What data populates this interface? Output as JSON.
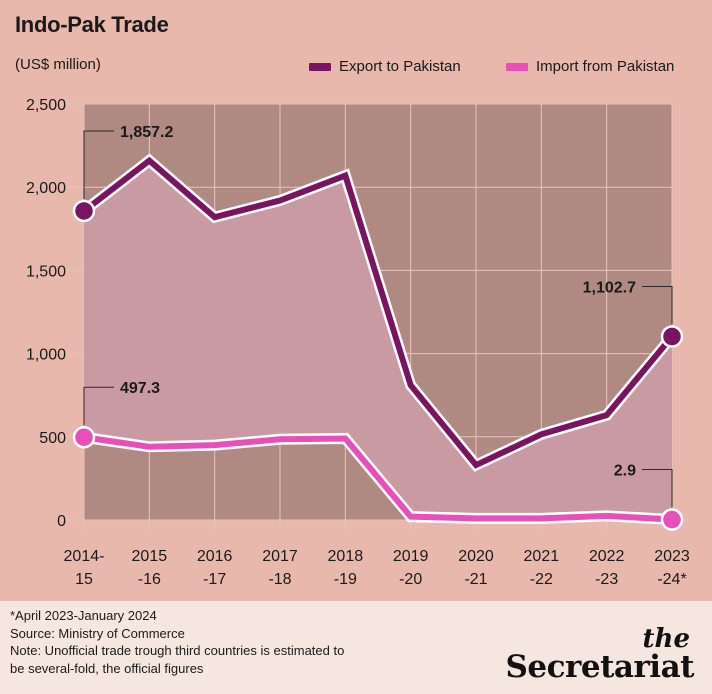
{
  "header": {
    "title": "Indo-Pak Trade",
    "unit": "(US$ million)"
  },
  "colors": {
    "background": "#e8b8ad",
    "plot_background": "#b08a82",
    "area_fill": "#c99aa1",
    "export": "#7a1460",
    "import": "#e84fb8",
    "footer": "#f6e6e0"
  },
  "chart_data": {
    "type": "line",
    "title": "Indo-Pak Trade",
    "ylabel": "(US$ million)",
    "ylim": [
      0,
      2500
    ],
    "yticks": [
      "0",
      "500",
      "1,000",
      "1,500",
      "2,000",
      "2,500"
    ],
    "ytick_values": [
      0,
      500,
      1000,
      1500,
      2000,
      2500
    ],
    "grid": true,
    "legend_position": "top-right",
    "categories": [
      [
        "2014-",
        "15"
      ],
      [
        "2015",
        "-16"
      ],
      [
        "2016",
        "-17"
      ],
      [
        "2017",
        "-18"
      ],
      [
        "2018",
        "-19"
      ],
      [
        "2019",
        "-20"
      ],
      [
        "2020",
        "-21"
      ],
      [
        "2021",
        "-22"
      ],
      [
        "2022",
        "-23"
      ],
      [
        "2023",
        "-24*"
      ]
    ],
    "series": [
      {
        "name": "Export to Pakistan",
        "color": "#7a1460",
        "values": [
          1857.2,
          2160,
          1820,
          1920,
          2070,
          810,
          330,
          515,
          630,
          1102.7
        ]
      },
      {
        "name": "Import from Pakistan",
        "color": "#e84fb8",
        "values": [
          497.3,
          440,
          450,
          485,
          490,
          20,
          10,
          10,
          25,
          2.9
        ]
      }
    ],
    "annotations": [
      {
        "series": 0,
        "index": 0,
        "label": "1,857.2"
      },
      {
        "series": 0,
        "index": 9,
        "label": "1,102.7"
      },
      {
        "series": 1,
        "index": 0,
        "label": "497.3"
      },
      {
        "series": 1,
        "index": 9,
        "label": "2.9"
      }
    ]
  },
  "footer": {
    "notes": [
      "*April 2023-January 2024",
      "Source: Ministry of Commerce",
      "Note: Unofficial trade trough third countries is estimated to",
      "be several-fold, the official figures"
    ],
    "brand_the": "the",
    "brand_name": "Secretariat"
  }
}
